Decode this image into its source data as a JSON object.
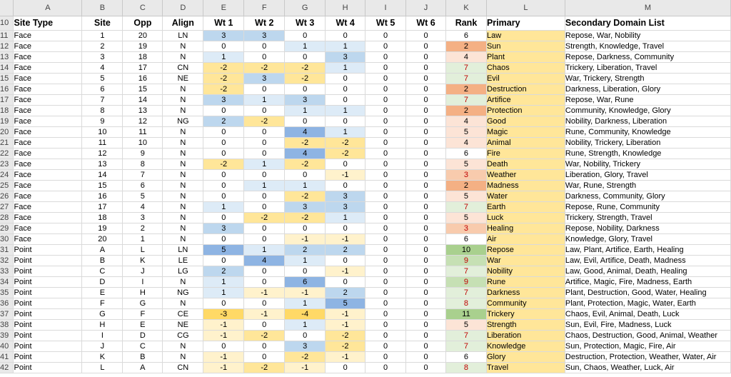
{
  "colors": {
    "blue_dark": "#8eb4e3",
    "blue_mid": "#bdd7ee",
    "blue_light": "#ddebf7",
    "orange_dark": "#ffd966",
    "orange_mid": "#ffe699",
    "orange_light": "#fff2cc",
    "rank_green_dark": "#a9d08e",
    "rank_green_mid": "#c6e0b4",
    "rank_green_light": "#e2efda",
    "rank_red_dark": "#f4b084",
    "rank_red_mid": "#f8cbad",
    "rank_red_light": "#fce4d6",
    "primary_fill": "#ffe699"
  },
  "column_letters": [
    "A",
    "B",
    "C",
    "D",
    "E",
    "F",
    "G",
    "H",
    "I",
    "J",
    "K",
    "L",
    "M"
  ],
  "header_row": {
    "number": "10",
    "cells": [
      "Site Type",
      "Site",
      "Opp",
      "Align",
      "Wt 1",
      "Wt 2",
      "Wt 3",
      "Wt 4",
      "Wt 5",
      "Wt 6",
      "Rank",
      "Primary",
      "Secondary Domain List"
    ]
  },
  "rows": [
    {
      "n": "11",
      "type": "Face",
      "site": "1",
      "opp": "20",
      "align": "LN",
      "wt1": "3",
      "wt2": "3",
      "wt3": "0",
      "wt4": "0",
      "wt5": "0",
      "wt6": "0",
      "rank": "6",
      "primary": "Law",
      "secondary": "Repose, War, Nobility"
    },
    {
      "n": "12",
      "type": "Face",
      "site": "2",
      "opp": "19",
      "align": "N",
      "wt1": "0",
      "wt2": "0",
      "wt3": "1",
      "wt4": "1",
      "wt5": "0",
      "wt6": "0",
      "rank": "2",
      "primary": "Sun",
      "secondary": "Strength, Knowledge, Travel"
    },
    {
      "n": "13",
      "type": "Face",
      "site": "3",
      "opp": "18",
      "align": "N",
      "wt1": "1",
      "wt2": "0",
      "wt3": "0",
      "wt4": "3",
      "wt5": "0",
      "wt6": "0",
      "rank": "4",
      "primary": "Plant",
      "secondary": "Repose, Darkness, Community"
    },
    {
      "n": "14",
      "type": "Face",
      "site": "4",
      "opp": "17",
      "align": "CN",
      "wt1": "-2",
      "wt2": "-2",
      "wt3": "-2",
      "wt4": "1",
      "wt5": "0",
      "wt6": "0",
      "rank": "7",
      "primary": "Chaos",
      "secondary": "Trickery, Liberation, Travel"
    },
    {
      "n": "15",
      "type": "Face",
      "site": "5",
      "opp": "16",
      "align": "NE",
      "wt1": "-2",
      "wt2": "3",
      "wt3": "-2",
      "wt4": "0",
      "wt5": "0",
      "wt6": "0",
      "rank": "7",
      "primary": "Evil",
      "secondary": "War, Trickery, Strength"
    },
    {
      "n": "16",
      "type": "Face",
      "site": "6",
      "opp": "15",
      "align": "N",
      "wt1": "-2",
      "wt2": "0",
      "wt3": "0",
      "wt4": "0",
      "wt5": "0",
      "wt6": "0",
      "rank": "2",
      "primary": "Destruction",
      "secondary": "Darkness, Liberation, Glory"
    },
    {
      "n": "17",
      "type": "Face",
      "site": "7",
      "opp": "14",
      "align": "N",
      "wt1": "3",
      "wt2": "1",
      "wt3": "3",
      "wt4": "0",
      "wt5": "0",
      "wt6": "0",
      "rank": "7",
      "primary": "Artifice",
      "secondary": "Repose, War, Rune"
    },
    {
      "n": "18",
      "type": "Face",
      "site": "8",
      "opp": "13",
      "align": "N",
      "wt1": "0",
      "wt2": "0",
      "wt3": "1",
      "wt4": "1",
      "wt5": "0",
      "wt6": "0",
      "rank": "2",
      "primary": "Protection",
      "secondary": "Community, Knowledge, Glory"
    },
    {
      "n": "19",
      "type": "Face",
      "site": "9",
      "opp": "12",
      "align": "NG",
      "wt1": "2",
      "wt2": "-2",
      "wt3": "0",
      "wt4": "0",
      "wt5": "0",
      "wt6": "0",
      "rank": "4",
      "primary": "Good",
      "secondary": "Nobility, Darkness, Liberation"
    },
    {
      "n": "20",
      "type": "Face",
      "site": "10",
      "opp": "11",
      "align": "N",
      "wt1": "0",
      "wt2": "0",
      "wt3": "4",
      "wt4": "1",
      "wt5": "0",
      "wt6": "0",
      "rank": "5",
      "primary": "Magic",
      "secondary": "Rune, Community, Knowledge"
    },
    {
      "n": "21",
      "type": "Face",
      "site": "11",
      "opp": "10",
      "align": "N",
      "wt1": "0",
      "wt2": "0",
      "wt3": "-2",
      "wt4": "-2",
      "wt5": "0",
      "wt6": "0",
      "rank": "4",
      "primary": "Animal",
      "secondary": "Nobility, Trickery, Liberation"
    },
    {
      "n": "22",
      "type": "Face",
      "site": "12",
      "opp": "9",
      "align": "N",
      "wt1": "0",
      "wt2": "0",
      "wt3": "4",
      "wt4": "-2",
      "wt5": "0",
      "wt6": "0",
      "rank": "6",
      "primary": "Fire",
      "secondary": "Rune, Strength, Knowledge"
    },
    {
      "n": "23",
      "type": "Face",
      "site": "13",
      "opp": "8",
      "align": "N",
      "wt1": "-2",
      "wt2": "1",
      "wt3": "-2",
      "wt4": "0",
      "wt5": "0",
      "wt6": "0",
      "rank": "5",
      "primary": "Death",
      "secondary": "War, Nobility, Trickery"
    },
    {
      "n": "24",
      "type": "Face",
      "site": "14",
      "opp": "7",
      "align": "N",
      "wt1": "0",
      "wt2": "0",
      "wt3": "0",
      "wt4": "-1",
      "wt5": "0",
      "wt6": "0",
      "rank": "3",
      "primary": "Weather",
      "secondary": "Liberation, Glory, Travel"
    },
    {
      "n": "25",
      "type": "Face",
      "site": "15",
      "opp": "6",
      "align": "N",
      "wt1": "0",
      "wt2": "1",
      "wt3": "1",
      "wt4": "0",
      "wt5": "0",
      "wt6": "0",
      "rank": "2",
      "primary": "Madness",
      "secondary": "War, Rune, Strength"
    },
    {
      "n": "26",
      "type": "Face",
      "site": "16",
      "opp": "5",
      "align": "N",
      "wt1": "0",
      "wt2": "0",
      "wt3": "-2",
      "wt4": "3",
      "wt5": "0",
      "wt6": "0",
      "rank": "5",
      "primary": "Water",
      "secondary": "Darkness, Community, Glory"
    },
    {
      "n": "27",
      "type": "Face",
      "site": "17",
      "opp": "4",
      "align": "N",
      "wt1": "1",
      "wt2": "0",
      "wt3": "3",
      "wt4": "3",
      "wt5": "0",
      "wt6": "0",
      "rank": "7",
      "primary": "Earth",
      "secondary": "Repose, Rune, Community"
    },
    {
      "n": "28",
      "type": "Face",
      "site": "18",
      "opp": "3",
      "align": "N",
      "wt1": "0",
      "wt2": "-2",
      "wt3": "-2",
      "wt4": "1",
      "wt5": "0",
      "wt6": "0",
      "rank": "5",
      "primary": "Luck",
      "secondary": "Trickery, Strength, Travel"
    },
    {
      "n": "29",
      "type": "Face",
      "site": "19",
      "opp": "2",
      "align": "N",
      "wt1": "3",
      "wt2": "0",
      "wt3": "0",
      "wt4": "0",
      "wt5": "0",
      "wt6": "0",
      "rank": "3",
      "primary": "Healing",
      "secondary": "Repose, Nobility, Darkness"
    },
    {
      "n": "30",
      "type": "Face",
      "site": "20",
      "opp": "1",
      "align": "N",
      "wt1": "0",
      "wt2": "0",
      "wt3": "-1",
      "wt4": "-1",
      "wt5": "0",
      "wt6": "0",
      "rank": "6",
      "primary": "Air",
      "secondary": "Knowledge, Glory, Travel"
    },
    {
      "n": "31",
      "type": "Point",
      "site": "A",
      "opp": "L",
      "align": "LN",
      "wt1": "5",
      "wt2": "1",
      "wt3": "2",
      "wt4": "2",
      "wt5": "0",
      "wt6": "0",
      "rank": "10",
      "primary": "Repose",
      "secondary": "Law, Plant, Artifice, Earth, Healing"
    },
    {
      "n": "32",
      "type": "Point",
      "site": "B",
      "opp": "K",
      "align": "LE",
      "wt1": "0",
      "wt2": "4",
      "wt3": "1",
      "wt4": "0",
      "wt5": "0",
      "wt6": "0",
      "rank": "9",
      "primary": "War",
      "secondary": "Law, Evil, Artifice, Death, Madness"
    },
    {
      "n": "33",
      "type": "Point",
      "site": "C",
      "opp": "J",
      "align": "LG",
      "wt1": "2",
      "wt2": "0",
      "wt3": "0",
      "wt4": "-1",
      "wt5": "0",
      "wt6": "0",
      "rank": "7",
      "primary": "Nobility",
      "secondary": "Law, Good, Animal, Death, Healing"
    },
    {
      "n": "34",
      "type": "Point",
      "site": "D",
      "opp": "I",
      "align": "N",
      "wt1": "1",
      "wt2": "0",
      "wt3": "6",
      "wt4": "0",
      "wt5": "0",
      "wt6": "0",
      "rank": "9",
      "primary": "Rune",
      "secondary": "Artifice, Magic, Fire, Madness, Earth"
    },
    {
      "n": "35",
      "type": "Point",
      "site": "E",
      "opp": "H",
      "align": "NG",
      "wt1": "1",
      "wt2": "-1",
      "wt3": "-1",
      "wt4": "2",
      "wt5": "0",
      "wt6": "0",
      "rank": "7",
      "primary": "Darkness",
      "secondary": "Plant, Destruction, Good, Water, Healing"
    },
    {
      "n": "36",
      "type": "Point",
      "site": "F",
      "opp": "G",
      "align": "N",
      "wt1": "0",
      "wt2": "0",
      "wt3": "1",
      "wt4": "5",
      "wt5": "0",
      "wt6": "0",
      "rank": "8",
      "primary": "Community",
      "secondary": "Plant, Protection, Magic, Water, Earth"
    },
    {
      "n": "37",
      "type": "Point",
      "site": "G",
      "opp": "F",
      "align": "CE",
      "wt1": "-3",
      "wt2": "-1",
      "wt3": "-4",
      "wt4": "-1",
      "wt5": "0",
      "wt6": "0",
      "rank": "11",
      "primary": "Trickery",
      "secondary": "Chaos, Evil, Animal, Death, Luck"
    },
    {
      "n": "38",
      "type": "Point",
      "site": "H",
      "opp": "E",
      "align": "NE",
      "wt1": "-1",
      "wt2": "0",
      "wt3": "1",
      "wt4": "-1",
      "wt5": "0",
      "wt6": "0",
      "rank": "5",
      "primary": "Strength",
      "secondary": "Sun, Evil, Fire, Madness, Luck"
    },
    {
      "n": "39",
      "type": "Point",
      "site": "I",
      "opp": "D",
      "align": "CG",
      "wt1": "-1",
      "wt2": "-2",
      "wt3": "0",
      "wt4": "-2",
      "wt5": "0",
      "wt6": "0",
      "rank": "7",
      "primary": "Liberation",
      "secondary": "Chaos, Destruction, Good, Animal, Weather"
    },
    {
      "n": "40",
      "type": "Point",
      "site": "J",
      "opp": "C",
      "align": "N",
      "wt1": "0",
      "wt2": "0",
      "wt3": "3",
      "wt4": "-2",
      "wt5": "0",
      "wt6": "0",
      "rank": "7",
      "primary": "Knowledge",
      "secondary": "Sun, Protection, Magic, Fire, Air"
    },
    {
      "n": "41",
      "type": "Point",
      "site": "K",
      "opp": "B",
      "align": "N",
      "wt1": "-1",
      "wt2": "0",
      "wt3": "-2",
      "wt4": "-1",
      "wt5": "0",
      "wt6": "0",
      "rank": "6",
      "primary": "Glory",
      "secondary": "Destruction, Protection, Weather, Water, Air"
    },
    {
      "n": "42",
      "type": "Point",
      "site": "L",
      "opp": "A",
      "align": "CN",
      "wt1": "-1",
      "wt2": "-2",
      "wt3": "-1",
      "wt4": "0",
      "wt5": "0",
      "wt6": "0",
      "rank": "8",
      "primary": "Travel",
      "secondary": "Sun, Chaos, Weather, Luck, Air"
    }
  ]
}
